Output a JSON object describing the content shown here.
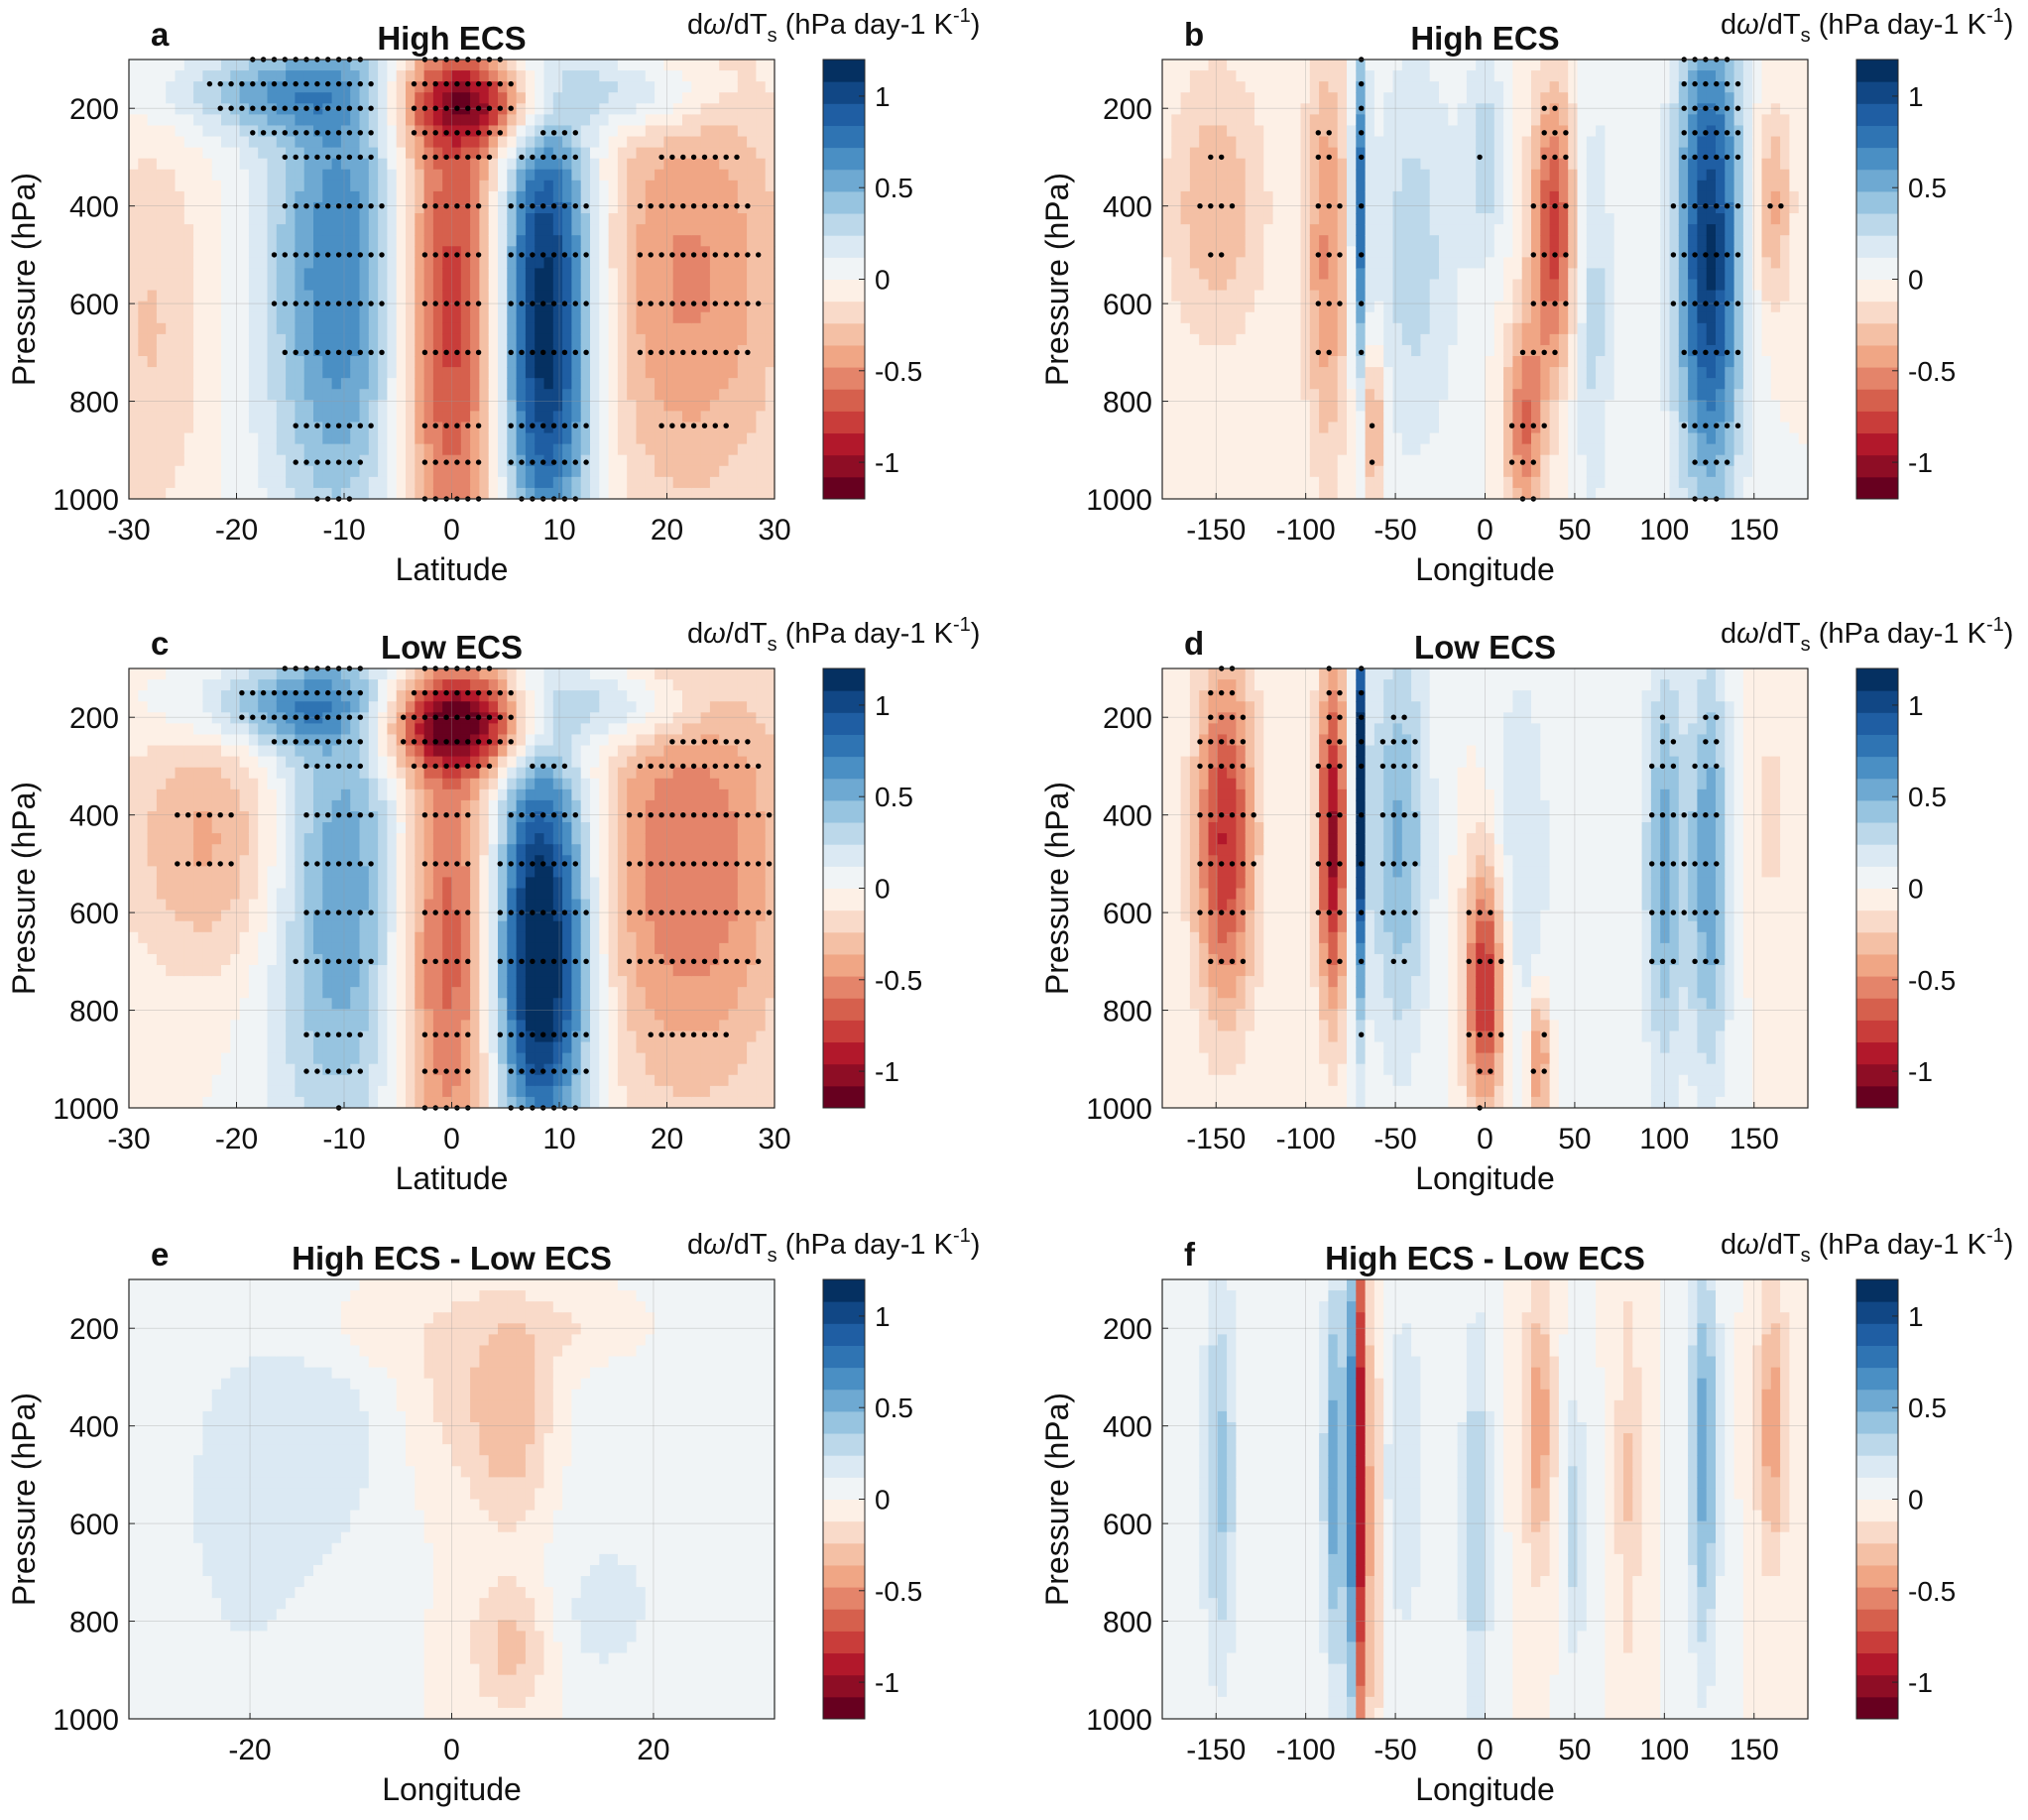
{
  "colorbar": {
    "ticks": [
      "1",
      "0.5",
      "0",
      "-0.5",
      "-1"
    ],
    "tick_values": [
      1,
      0.5,
      0,
      -0.5,
      -1
    ],
    "range": [
      -1.2,
      1.2
    ],
    "colors": [
      "#67001f",
      "#8e0d25",
      "#b2182b",
      "#c93d3a",
      "#d6604d",
      "#e4846a",
      "#f0a685",
      "#f4c0a5",
      "#f9dac9",
      "#fdf0e6",
      "#f0f4f6",
      "#dbe9f3",
      "#bcd8ea",
      "#97c4e0",
      "#6ea9d2",
      "#4a8fc4",
      "#2f74b3",
      "#1f5ea3",
      "#114785",
      "#053061"
    ],
    "label_prefix": "d",
    "label_omega": "ω",
    "label_mid": "/dT",
    "label_sub": "s",
    "label_rest": " (hPa day-1 K",
    "label_exp": "-1",
    "label_close": ")"
  },
  "chart_data": [
    {
      "id": "a",
      "panel_letter": "a",
      "title": "High ECS",
      "type": "heatmap",
      "xlabel": "Latitude",
      "ylabel": "Pressure (hPa)",
      "xlim": [
        -30,
        30
      ],
      "ylim": [
        100,
        1000
      ],
      "xticks": [
        -30,
        -20,
        -10,
        0,
        10,
        20,
        30
      ],
      "yticks": [
        200,
        400,
        600,
        800,
        1000
      ],
      "stippling": true,
      "field": [
        {
          "x": -10,
          "p": 550,
          "sx": 5,
          "sp": 380,
          "a": 0.75
        },
        {
          "x": -17,
          "p": 170,
          "sx": 7,
          "sp": 60,
          "a": 0.45
        },
        {
          "x": 0,
          "p": 600,
          "sx": 4,
          "sp": 450,
          "a": -0.9
        },
        {
          "x": 3,
          "p": 190,
          "sx": 6,
          "sp": 60,
          "a": -0.7
        },
        {
          "x": 8.5,
          "p": 780,
          "sx": 3.3,
          "sp": 250,
          "a": 1.1
        },
        {
          "x": 8.5,
          "p": 400,
          "sx": 3.3,
          "sp": 200,
          "a": 0.75
        },
        {
          "x": 16,
          "p": 170,
          "sx": 6,
          "sp": 60,
          "a": 0.45
        },
        {
          "x": 22,
          "p": 550,
          "sx": 7,
          "sp": 350,
          "a": -0.5
        },
        {
          "x": -28,
          "p": 650,
          "sx": 4,
          "sp": 300,
          "a": -0.25
        }
      ]
    },
    {
      "id": "b",
      "panel_letter": "b",
      "title": "High ECS",
      "type": "heatmap",
      "xlabel": "Longitude",
      "ylabel": "Pressure (hPa)",
      "xlim": [
        -180,
        180
      ],
      "ylim": [
        100,
        1000
      ],
      "xticks": [
        -150,
        -100,
        -50,
        0,
        50,
        100,
        150
      ],
      "yticks": [
        200,
        400,
        600,
        800,
        1000
      ],
      "stippling": true,
      "field": [
        {
          "x": -150,
          "p": 400,
          "sx": 20,
          "sp": 200,
          "a": -0.35
        },
        {
          "x": -88,
          "p": 500,
          "sx": 9,
          "sp": 300,
          "a": -0.5
        },
        {
          "x": -70,
          "p": 400,
          "sx": 3,
          "sp": 250,
          "a": 0.8
        },
        {
          "x": -62,
          "p": 850,
          "sx": 4,
          "sp": 120,
          "a": -0.5
        },
        {
          "x": -40,
          "p": 500,
          "sx": 18,
          "sp": 300,
          "a": 0.3
        },
        {
          "x": 0,
          "p": 300,
          "sx": 8,
          "sp": 150,
          "a": 0.3
        },
        {
          "x": 38,
          "p": 450,
          "sx": 9,
          "sp": 200,
          "a": -0.8
        },
        {
          "x": 22,
          "p": 850,
          "sx": 8,
          "sp": 150,
          "a": -0.6
        },
        {
          "x": 60,
          "p": 600,
          "sx": 8,
          "sp": 300,
          "a": 0.3
        },
        {
          "x": 125,
          "p": 500,
          "sx": 13,
          "sp": 350,
          "a": 1.1
        },
        {
          "x": 160,
          "p": 400,
          "sx": 8,
          "sp": 150,
          "a": -0.4
        }
      ]
    },
    {
      "id": "c",
      "panel_letter": "c",
      "title": "Low ECS",
      "type": "heatmap",
      "xlabel": "Latitude",
      "ylabel": "Pressure (hPa)",
      "xlim": [
        -30,
        30
      ],
      "ylim": [
        100,
        1000
      ],
      "xticks": [
        -30,
        -20,
        -10,
        0,
        10,
        20,
        30
      ],
      "yticks": [
        200,
        400,
        600,
        800,
        1000
      ],
      "stippling": true,
      "field": [
        {
          "x": -10,
          "p": 550,
          "sx": 5,
          "sp": 380,
          "a": 0.65
        },
        {
          "x": -15,
          "p": 180,
          "sx": 7,
          "sp": 60,
          "a": 0.55
        },
        {
          "x": 0,
          "p": 650,
          "sx": 4,
          "sp": 400,
          "a": -0.8
        },
        {
          "x": 1,
          "p": 210,
          "sx": 6,
          "sp": 70,
          "a": -1.0
        },
        {
          "x": 8,
          "p": 800,
          "sx": 3.3,
          "sp": 230,
          "a": 1.15
        },
        {
          "x": 8,
          "p": 450,
          "sx": 3.5,
          "sp": 220,
          "a": 0.8
        },
        {
          "x": 15,
          "p": 180,
          "sx": 6,
          "sp": 60,
          "a": 0.45
        },
        {
          "x": 22,
          "p": 500,
          "sx": 7,
          "sp": 350,
          "a": -0.6
        },
        {
          "x": -22,
          "p": 450,
          "sx": 6,
          "sp": 200,
          "a": -0.4
        }
      ]
    },
    {
      "id": "d",
      "panel_letter": "d",
      "title": "Low ECS",
      "type": "heatmap",
      "xlabel": "Longitude",
      "ylabel": "Pressure (hPa)",
      "xlim": [
        -180,
        180
      ],
      "ylim": [
        100,
        1000
      ],
      "xticks": [
        -150,
        -100,
        -50,
        0,
        50,
        100,
        150
      ],
      "yticks": [
        200,
        400,
        600,
        800,
        1000
      ],
      "stippling": true,
      "field": [
        {
          "x": -145,
          "p": 450,
          "sx": 12,
          "sp": 250,
          "a": -0.85
        },
        {
          "x": -85,
          "p": 450,
          "sx": 6,
          "sp": 250,
          "a": -1.0
        },
        {
          "x": -70,
          "p": 350,
          "sx": 2.5,
          "sp": 300,
          "a": 1.2
        },
        {
          "x": -48,
          "p": 450,
          "sx": 12,
          "sp": 300,
          "a": 0.5
        },
        {
          "x": 0,
          "p": 750,
          "sx": 8,
          "sp": 180,
          "a": -0.9
        },
        {
          "x": 30,
          "p": 900,
          "sx": 4,
          "sp": 100,
          "a": -0.6
        },
        {
          "x": 20,
          "p": 500,
          "sx": 12,
          "sp": 300,
          "a": 0.25
        },
        {
          "x": 100,
          "p": 500,
          "sx": 8,
          "sp": 300,
          "a": 0.55
        },
        {
          "x": 125,
          "p": 500,
          "sx": 8,
          "sp": 300,
          "a": 0.6
        },
        {
          "x": 160,
          "p": 400,
          "sx": 10,
          "sp": 200,
          "a": -0.15
        }
      ]
    },
    {
      "id": "e",
      "panel_letter": "e",
      "title": "High ECS - Low ECS",
      "type": "heatmap",
      "xlabel": "Longitude",
      "ylabel": "Pressure (hPa)",
      "xlim": [
        -32,
        32
      ],
      "ylim": [
        100,
        1000
      ],
      "xticks": [
        -20,
        0,
        20
      ],
      "yticks": [
        200,
        400,
        600,
        800,
        1000
      ],
      "stippling": false,
      "field": [
        {
          "x": -20,
          "p": 550,
          "sx": 6,
          "sp": 300,
          "a": 0.18
        },
        {
          "x": -10,
          "p": 400,
          "sx": 4,
          "sp": 200,
          "a": 0.12
        },
        {
          "x": 6,
          "p": 400,
          "sx": 3,
          "sp": 150,
          "a": -0.32
        },
        {
          "x": 6,
          "p": 850,
          "sx": 3,
          "sp": 100,
          "a": -0.3
        },
        {
          "x": 0,
          "p": 300,
          "sx": 4,
          "sp": 150,
          "a": -0.15
        },
        {
          "x": -8,
          "p": 200,
          "sx": 3,
          "sp": 60,
          "a": -0.15
        },
        {
          "x": 12,
          "p": 200,
          "sx": 6,
          "sp": 60,
          "a": -0.15
        },
        {
          "x": 20,
          "p": 500,
          "sx": 8,
          "sp": 300,
          "a": 0.1
        },
        {
          "x": 14,
          "p": 800,
          "sx": 4,
          "sp": 100,
          "a": 0.12
        }
      ]
    },
    {
      "id": "f",
      "panel_letter": "f",
      "title": "High ECS - Low ECS",
      "type": "heatmap",
      "xlabel": "Longitude",
      "ylabel": "Pressure (hPa)",
      "xlim": [
        -180,
        180
      ],
      "ylim": [
        100,
        1000
      ],
      "xticks": [
        -150,
        -100,
        -50,
        0,
        50,
        100,
        150
      ],
      "yticks": [
        200,
        400,
        600,
        800,
        1000
      ],
      "stippling": false,
      "field": [
        {
          "x": -148,
          "p": 500,
          "sx": 7,
          "sp": 300,
          "a": 0.4
        },
        {
          "x": -85,
          "p": 500,
          "sx": 4,
          "sp": 300,
          "a": 0.55
        },
        {
          "x": -75,
          "p": 500,
          "sx": 3,
          "sp": 400,
          "a": 0.75
        },
        {
          "x": -69,
          "p": 500,
          "sx": 2.2,
          "sp": 450,
          "a": -1.1
        },
        {
          "x": -62,
          "p": 600,
          "sx": 3,
          "sp": 350,
          "a": -0.4
        },
        {
          "x": -45,
          "p": 500,
          "sx": 10,
          "sp": 300,
          "a": 0.2
        },
        {
          "x": -5,
          "p": 600,
          "sx": 6,
          "sp": 300,
          "a": 0.35
        },
        {
          "x": 30,
          "p": 400,
          "sx": 6,
          "sp": 200,
          "a": -0.45
        },
        {
          "x": 50,
          "p": 600,
          "sx": 5,
          "sp": 200,
          "a": 0.3
        },
        {
          "x": 80,
          "p": 500,
          "sx": 5,
          "sp": 300,
          "a": -0.25
        },
        {
          "x": 122,
          "p": 450,
          "sx": 6,
          "sp": 300,
          "a": 0.55
        },
        {
          "x": 160,
          "p": 400,
          "sx": 6,
          "sp": 200,
          "a": -0.45
        }
      ]
    }
  ]
}
